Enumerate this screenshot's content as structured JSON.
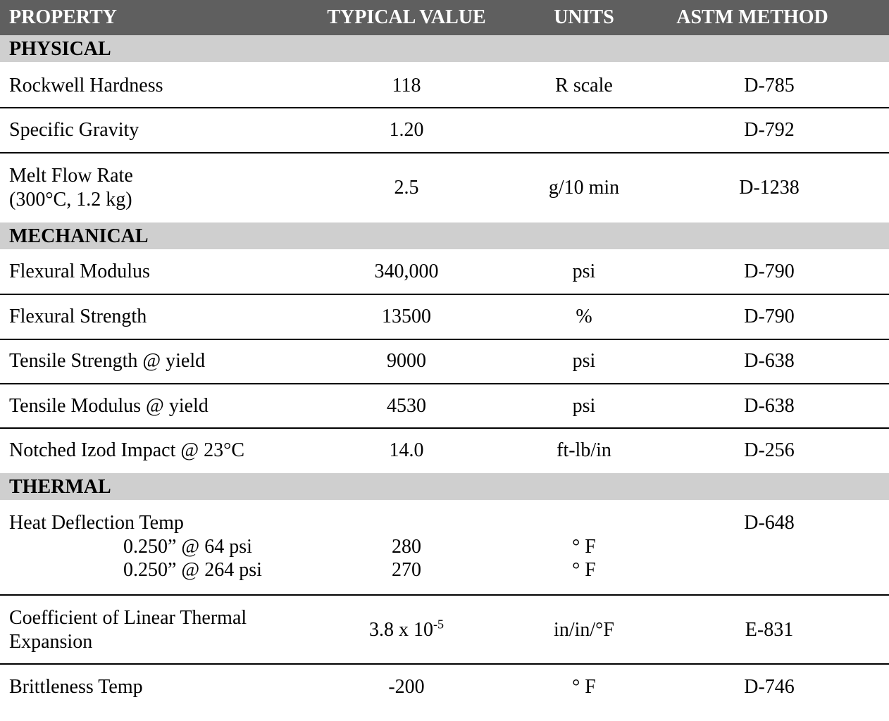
{
  "header": {
    "property": "PROPERTY",
    "typical_value": "TYPICAL VALUE",
    "units": "UNITS",
    "astm_method": "ASTM METHOD"
  },
  "sections": {
    "physical": "PHYSICAL",
    "mechanical": "MECHANICAL",
    "thermal": "THERMAL"
  },
  "rows": {
    "rockwell": {
      "property": "Rockwell Hardness",
      "value": "118",
      "units": "R scale",
      "method": "D-785"
    },
    "gravity": {
      "property": "Specific Gravity",
      "value": "1.20",
      "units": "",
      "method": "D-792"
    },
    "melt": {
      "property_line1": "Melt Flow Rate",
      "property_line2": "(300°C, 1.2 kg)",
      "value": "2.5",
      "units": "g/10 min",
      "method": "D-1238"
    },
    "flex_mod": {
      "property": "Flexural Modulus",
      "value": "340,000",
      "units": "psi",
      "method": "D-790"
    },
    "flex_str": {
      "property": "Flexural Strength",
      "value": "13500",
      "units": "%",
      "method": "D-790"
    },
    "tensile_str": {
      "property": "Tensile Strength @ yield",
      "value": "9000",
      "units": "psi",
      "method": "D-638"
    },
    "tensile_mod": {
      "property": "Tensile Modulus @ yield",
      "value": "4530",
      "units": "psi",
      "method": "D-638"
    },
    "izod": {
      "property": "Notched Izod Impact @ 23°C",
      "value": "14.0",
      "units": "ft-lb/in",
      "method": "D-256"
    },
    "hdt": {
      "property": "Heat Deflection Temp",
      "method": "D-648",
      "sub1_label": "0.250” @ 64 psi",
      "sub1_value": "280",
      "sub1_units": "° F",
      "sub2_label": "0.250” @ 264 psi",
      "sub2_value": "270",
      "sub2_units": "° F"
    },
    "clte": {
      "property_line1": "Coefficient of Linear Thermal",
      "property_line2": "Expansion",
      "value_base": "3.8 x 10",
      "value_exp": "-5",
      "units": "in/in/°F",
      "method": "E-831"
    },
    "brittle": {
      "property": "Brittleness Temp",
      "value": "-200",
      "units": "° F",
      "method": "D-746"
    }
  }
}
